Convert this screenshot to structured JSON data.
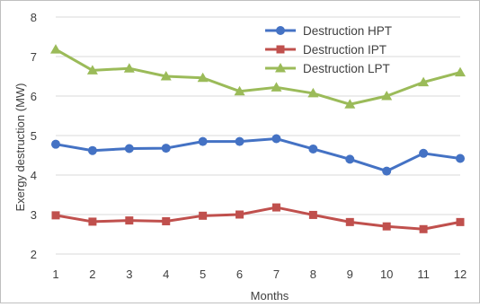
{
  "chart_data": {
    "type": "line",
    "title": "",
    "xlabel": "Months",
    "ylabel": "Exergy destruction (MW)",
    "categories": [
      1,
      2,
      3,
      4,
      5,
      6,
      7,
      8,
      9,
      10,
      11,
      12
    ],
    "ylim": [
      2,
      8
    ],
    "yticks": [
      2,
      3,
      4,
      5,
      6,
      7,
      8
    ],
    "grid": true,
    "legend_position": "top-right",
    "series": [
      {
        "name": "Destruction HPT",
        "color": "#4472c4",
        "marker": "circle",
        "values": [
          4.78,
          4.62,
          4.67,
          4.68,
          4.85,
          4.85,
          4.92,
          4.66,
          4.4,
          4.1,
          4.55,
          4.42
        ]
      },
      {
        "name": "Destruction IPT",
        "color": "#c0504d",
        "marker": "square",
        "values": [
          2.98,
          2.82,
          2.85,
          2.83,
          2.97,
          3.0,
          3.18,
          2.99,
          2.81,
          2.7,
          2.63,
          2.81
        ]
      },
      {
        "name": "Destruction LPT",
        "color": "#9bbb59",
        "marker": "triangle",
        "values": [
          7.18,
          6.65,
          6.7,
          6.5,
          6.46,
          6.12,
          6.22,
          6.07,
          5.79,
          6.0,
          6.35,
          6.6
        ]
      }
    ]
  }
}
